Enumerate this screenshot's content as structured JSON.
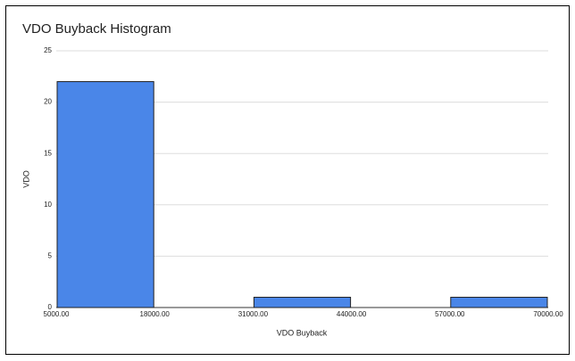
{
  "chart_data": {
    "type": "histogram",
    "title": "VDO Buyback Histogram",
    "x_label": "VDO Buyback",
    "y_label": "VDO",
    "bins": [
      5000,
      18000,
      31000,
      44000,
      57000,
      70000
    ],
    "values": [
      22,
      0,
      1,
      0,
      1
    ],
    "color": "#4a86e8",
    "xlim": [
      5000,
      70000
    ],
    "xticks": [
      {
        "value": 5000,
        "label": "5000.00"
      },
      {
        "value": 18000,
        "label": "18000.00"
      },
      {
        "value": 31000,
        "label": "31000.00"
      },
      {
        "value": 44000,
        "label": "44000.00"
      },
      {
        "value": 57000,
        "label": "57000.00"
      },
      {
        "value": 70000,
        "label": "70000.00"
      }
    ],
    "ylim": [
      0,
      25
    ],
    "yticks": [
      0,
      5,
      10,
      15,
      20,
      25
    ],
    "grid": true
  }
}
